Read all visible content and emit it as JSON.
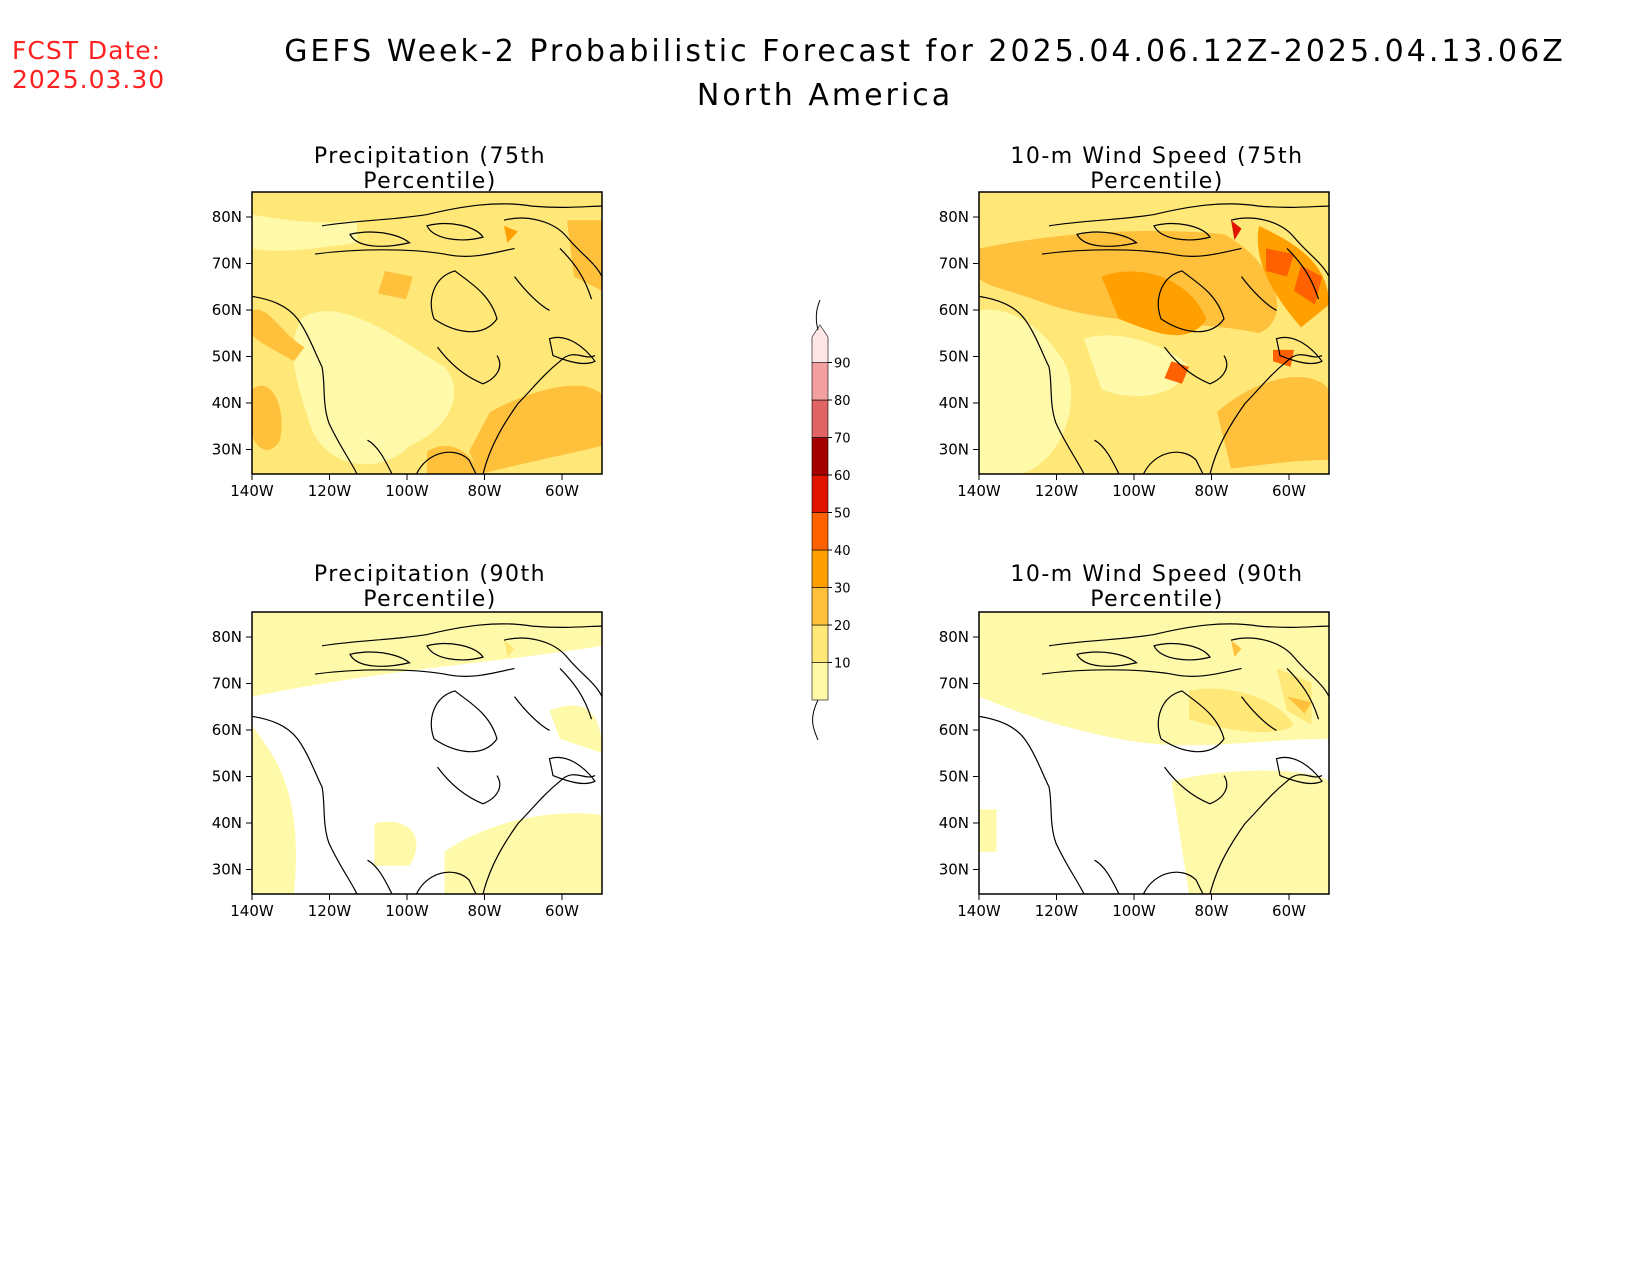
{
  "header": {
    "fcst_label": "FCST Date:",
    "fcst_date": "2025.03.30",
    "title": "GEFS Week-2 Probabilistic Forecast for 2025.04.06.12Z-2025.04.13.06Z",
    "region": "North America"
  },
  "panels": [
    {
      "id": "precip75",
      "title": "Precipitation (75th Percentile)",
      "fill": "moderate"
    },
    {
      "id": "wind75",
      "title": "10-m Wind Speed (75th Percentile)",
      "fill": "strong"
    },
    {
      "id": "precip90",
      "title": "Precipitation (90th Percentile)",
      "fill": "light"
    },
    {
      "id": "wind90",
      "title": "10-m Wind Speed (90th Percentile)",
      "fill": "light-plus"
    }
  ],
  "axes": {
    "lat_labels": [
      "80N",
      "70N",
      "60N",
      "50N",
      "40N",
      "30N"
    ],
    "lon_labels": [
      "140W",
      "120W",
      "100W",
      "80W",
      "60W"
    ]
  },
  "colorbar": {
    "levels": [
      "10",
      "20",
      "30",
      "40",
      "50",
      "60",
      "70",
      "80",
      "90"
    ],
    "colors": [
      "#fffaaa",
      "#ffe878",
      "#ffc03c",
      "#ffa000",
      "#ff6000",
      "#e11400",
      "#a50000",
      "#e06464",
      "#f5a0a0",
      "#ffe6e6"
    ]
  }
}
